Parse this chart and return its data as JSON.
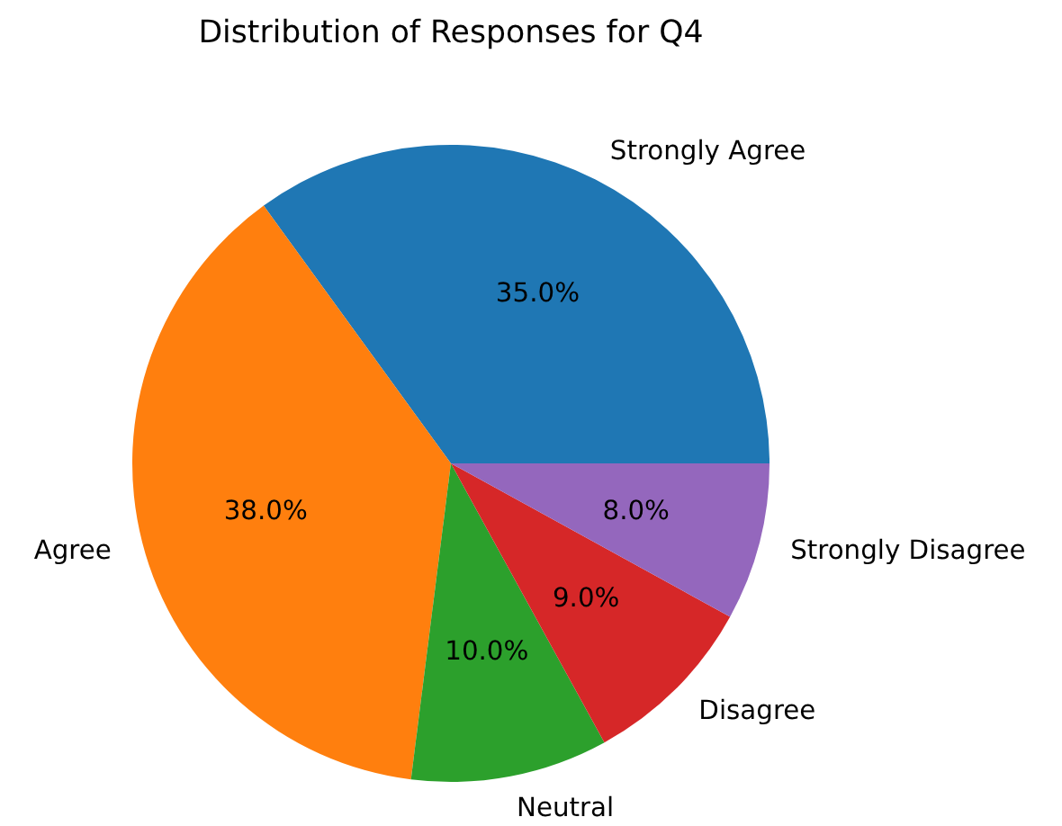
{
  "chart_data": {
    "type": "pie",
    "title": "Distribution of Responses for Q4",
    "categories": [
      "Strongly Agree",
      "Agree",
      "Neutral",
      "Disagree",
      "Strongly Disagree"
    ],
    "values": [
      35,
      38,
      10,
      9,
      8
    ],
    "colors": [
      "#1f77b4",
      "#ff7f0e",
      "#2ca02c",
      "#d62728",
      "#9467bd"
    ],
    "value_labels": [
      "35.0%",
      "38.0%",
      "10.0%",
      "9.0%",
      "8.0%"
    ]
  }
}
